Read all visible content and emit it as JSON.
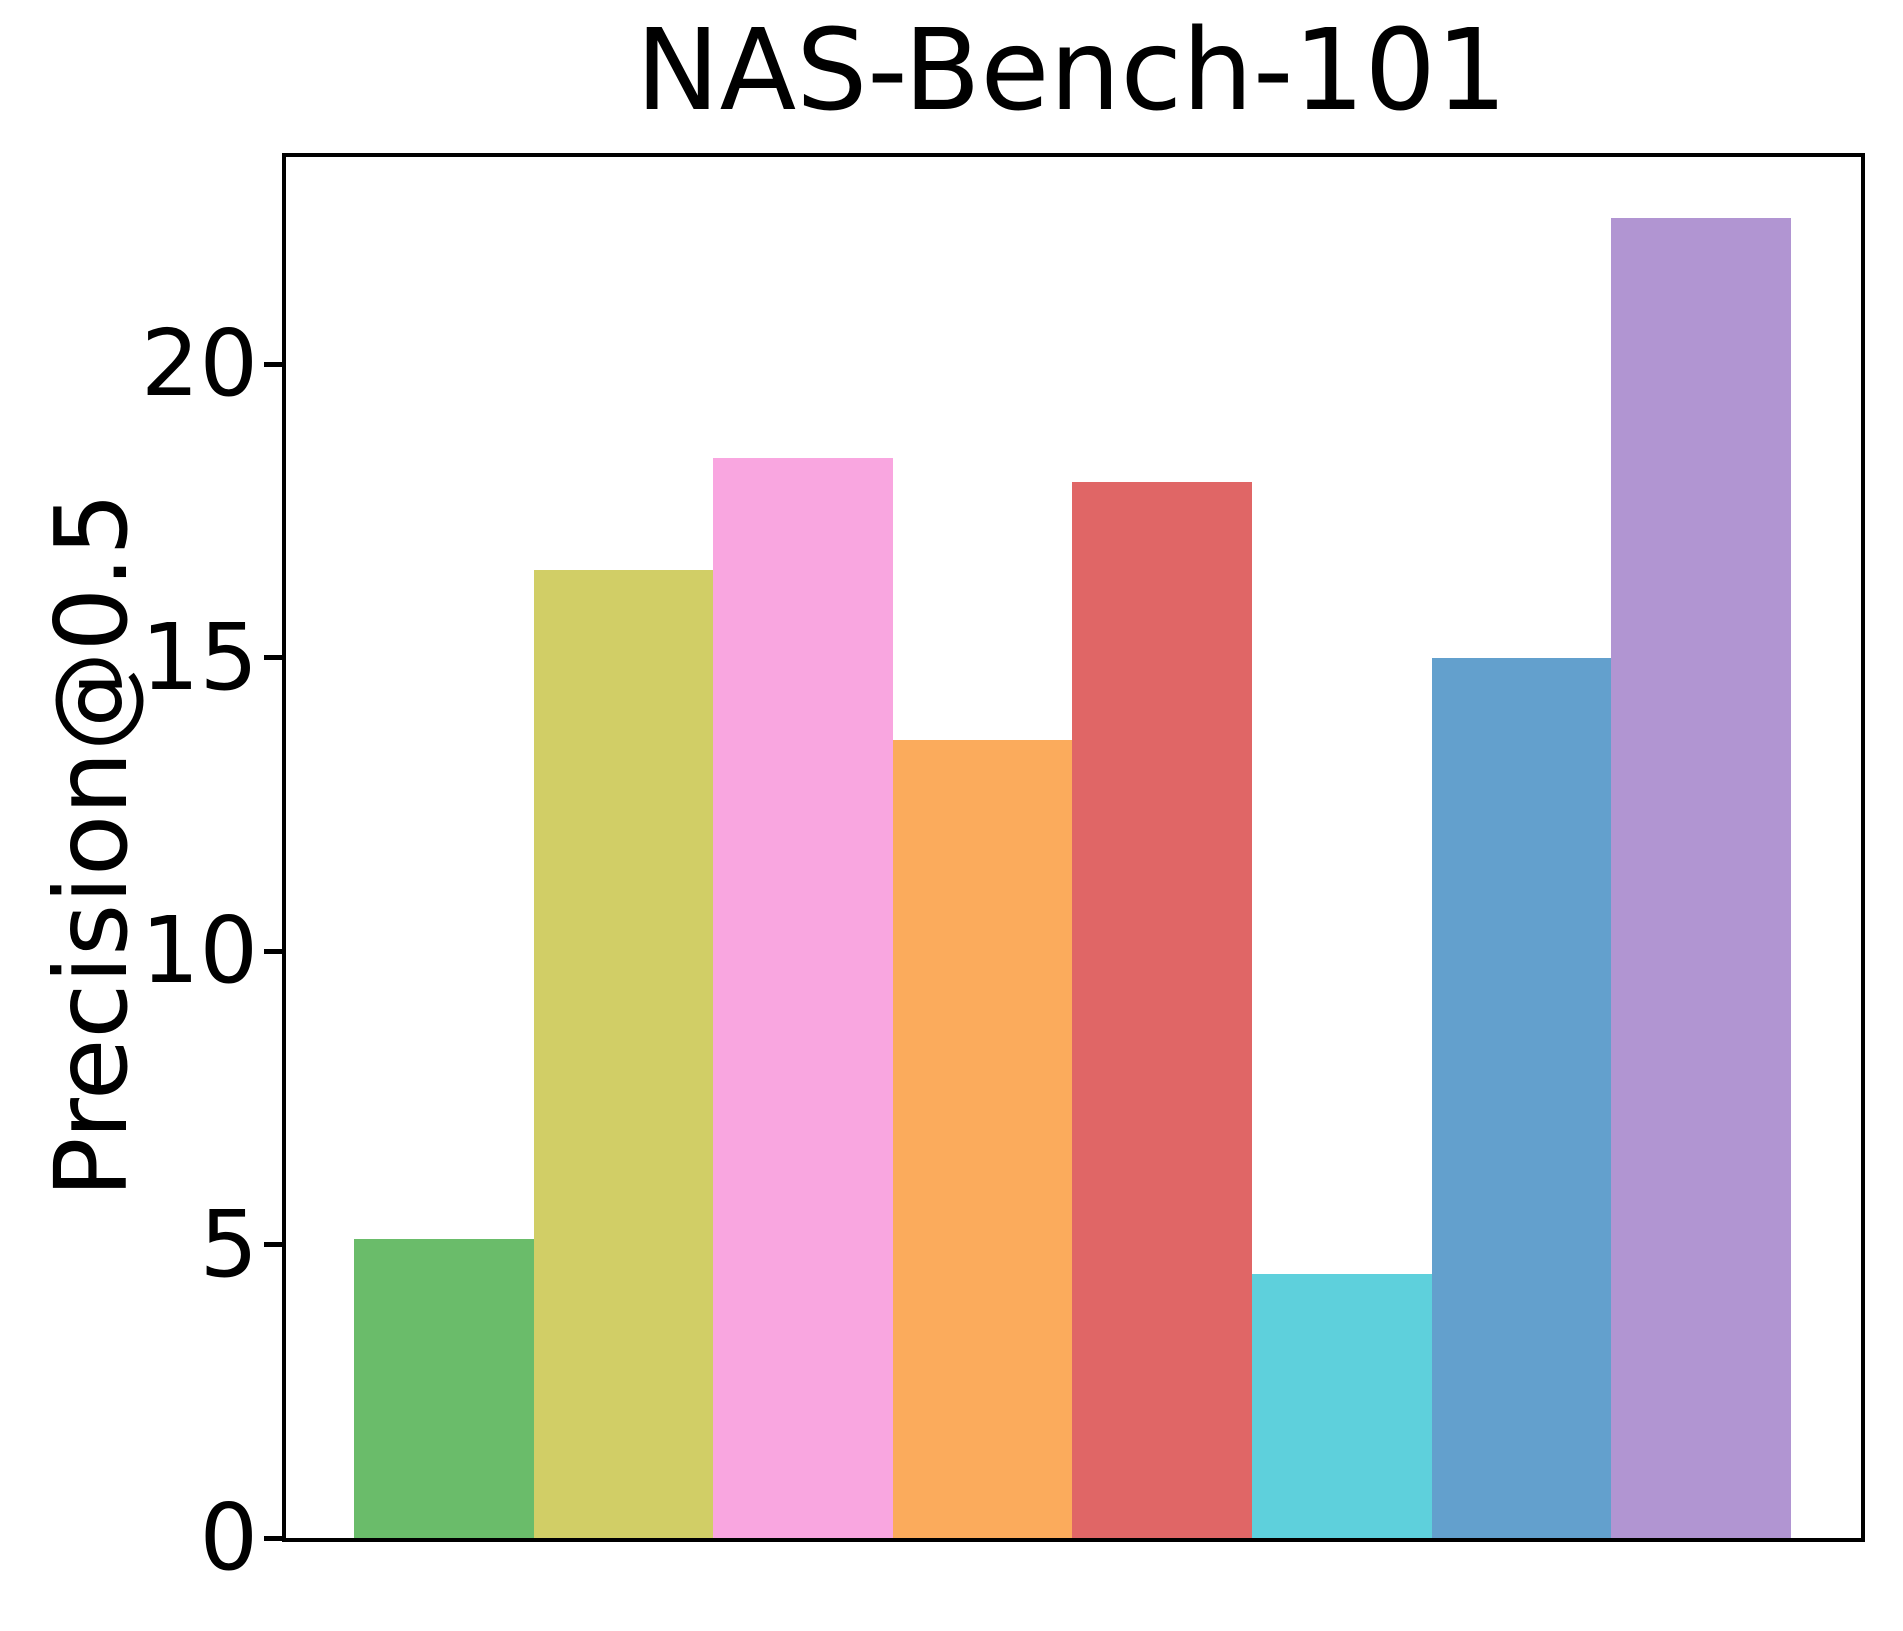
{
  "chart_data": {
    "type": "bar",
    "title": "NAS-Bench-101",
    "xlabel": "",
    "ylabel": "Precision@0.5",
    "values": [
      5.1,
      16.5,
      18.4,
      13.6,
      18.0,
      4.5,
      15.0,
      22.5
    ],
    "bar_colors": [
      "#6abc6a",
      "#d1ce66",
      "#f9a6e0",
      "#fbab5c",
      "#e06666",
      "#5ed0dc",
      "#63a0cd",
      "#b195d2"
    ],
    "yticks": [
      0,
      5,
      10,
      15,
      20
    ],
    "ylim": [
      0,
      23.6
    ],
    "x_tick_labels": [],
    "grid": false,
    "legend": false,
    "frame": "full-box",
    "spine_color": "#000000",
    "background_color": "#ffffff"
  }
}
